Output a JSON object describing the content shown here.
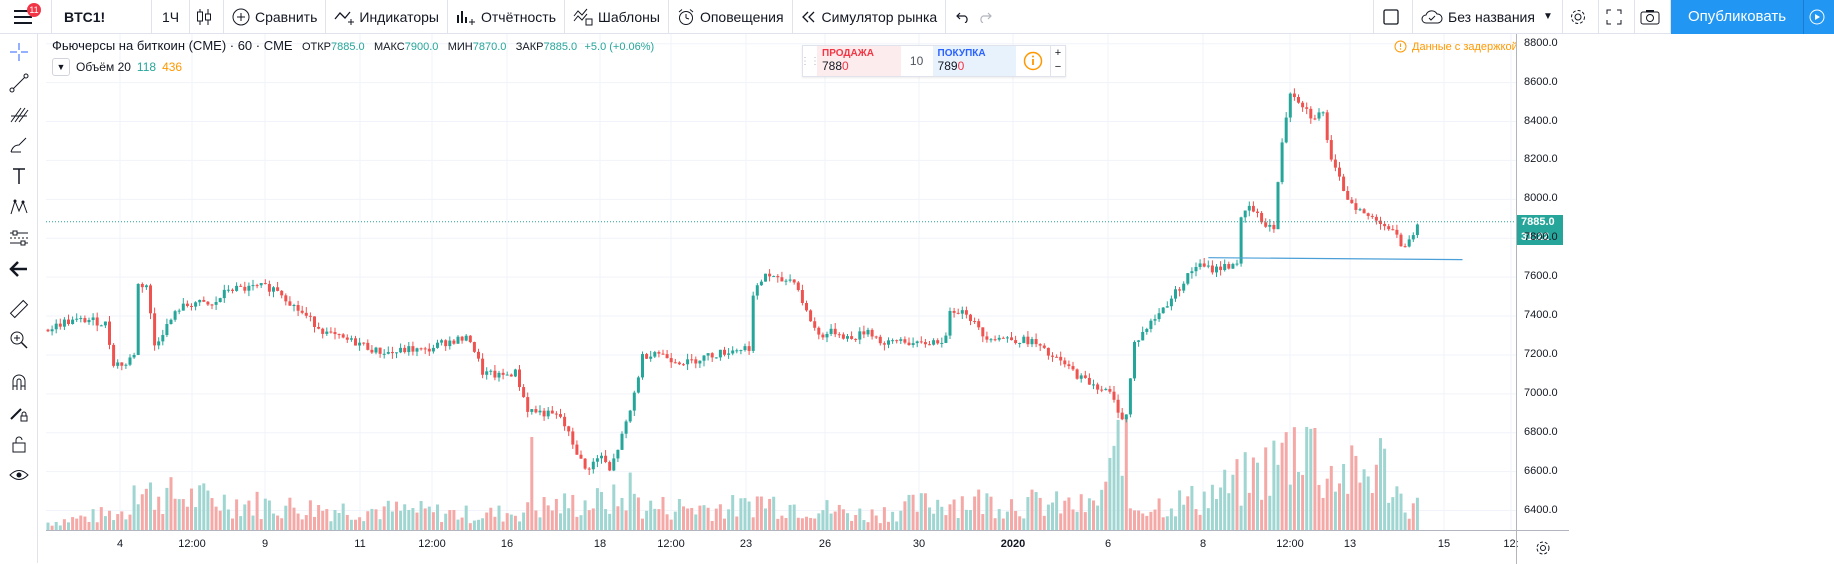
{
  "toolbar": {
    "notification_count": "11",
    "symbol": "BTC1!",
    "interval": "1Ч",
    "compare": "Сравнить",
    "indicators": "Индикаторы",
    "financials": "Отчётность",
    "templates": "Шаблоны",
    "alerts": "Оповещения",
    "replay": "Симулятор рынка",
    "layout_name": "Без названия",
    "publish": "Опубликовать"
  },
  "legend": {
    "title": "Фьючерсы на биткоин (CME) · 60 · CME",
    "open_label": "ОТКР",
    "open": "7885.0",
    "high_label": "МАКС",
    "high": "7900.0",
    "low_label": "МИН",
    "low": "7870.0",
    "close_label": "ЗАКР",
    "close": "7885.0",
    "change": "+5.0 (+0.06%)",
    "volume_label": "Объём 20",
    "volume_value_1": "118",
    "volume_value_2": "436"
  },
  "trade_panel": {
    "sell_label": "ПРОДАЖА",
    "sell_price_main": "788",
    "sell_price_tail": "0",
    "quantity": "10",
    "buy_label": "ПОКУПКА",
    "buy_price_main": "789",
    "buy_price_tail": "0",
    "plus": "+",
    "minus": "−"
  },
  "delayed_notice": "Данные с задержкой",
  "price_axis": {
    "labels": [
      "8800.0",
      "8600.0",
      "8400.0",
      "8200.0",
      "8000.0",
      "7800.0",
      "7600.0",
      "7400.0",
      "7200.0",
      "7000.0",
      "6800.0",
      "6600.0",
      "6400.0"
    ],
    "last_price": "7885.0",
    "countdown": "31:22"
  },
  "time_axis": {
    "labels": [
      {
        "text": "4",
        "bold": false
      },
      {
        "text": "12:00",
        "bold": false
      },
      {
        "text": "9",
        "bold": false
      },
      {
        "text": "11",
        "bold": false
      },
      {
        "text": "12:00",
        "bold": false
      },
      {
        "text": "16",
        "bold": false
      },
      {
        "text": "18",
        "bold": false
      },
      {
        "text": "12:00",
        "bold": false
      },
      {
        "text": "23",
        "bold": false
      },
      {
        "text": "26",
        "bold": false
      },
      {
        "text": "30",
        "bold": false
      },
      {
        "text": "2020",
        "bold": true
      },
      {
        "text": "6",
        "bold": false
      },
      {
        "text": "8",
        "bold": false
      },
      {
        "text": "12:00",
        "bold": false
      },
      {
        "text": "13",
        "bold": false
      },
      {
        "text": "15",
        "bold": false
      },
      {
        "text": "12:",
        "bold": false
      }
    ]
  },
  "colors": {
    "up": "#26a69a",
    "down": "#ef5350",
    "accent": "#2196f3",
    "trendline": "#4a9fd8",
    "grid": "#f0f3fa"
  },
  "chart_data": {
    "type": "candlestick",
    "symbol": "BTC1!",
    "interval": "60",
    "ylim": [
      6300,
      8850
    ],
    "price_path": [
      [
        0,
        7330
      ],
      [
        4,
        7370
      ],
      [
        10,
        7380
      ],
      [
        14,
        7360
      ],
      [
        16,
        7160
      ],
      [
        19,
        7150
      ],
      [
        21,
        7210
      ],
      [
        22,
        7560
      ],
      [
        24,
        7560
      ],
      [
        26,
        7250
      ],
      [
        28,
        7320
      ],
      [
        32,
        7440
      ],
      [
        36,
        7470
      ],
      [
        40,
        7450
      ],
      [
        44,
        7540
      ],
      [
        48,
        7540
      ],
      [
        52,
        7550
      ],
      [
        56,
        7540
      ],
      [
        60,
        7450
      ],
      [
        64,
        7380
      ],
      [
        68,
        7310
      ],
      [
        72,
        7280
      ],
      [
        76,
        7260
      ],
      [
        80,
        7220
      ],
      [
        84,
        7210
      ],
      [
        88,
        7230
      ],
      [
        92,
        7220
      ],
      [
        96,
        7260
      ],
      [
        100,
        7280
      ],
      [
        103,
        7280
      ],
      [
        106,
        7110
      ],
      [
        110,
        7090
      ],
      [
        114,
        7110
      ],
      [
        117,
        6920
      ],
      [
        121,
        6900
      ],
      [
        125,
        6880
      ],
      [
        127,
        6790
      ],
      [
        131,
        6610
      ],
      [
        135,
        6680
      ],
      [
        137,
        6600
      ],
      [
        140,
        6780
      ],
      [
        142,
        6910
      ],
      [
        145,
        7190
      ],
      [
        148,
        7220
      ],
      [
        152,
        7180
      ],
      [
        156,
        7160
      ],
      [
        160,
        7190
      ],
      [
        164,
        7210
      ],
      [
        168,
        7230
      ],
      [
        171,
        7240
      ],
      [
        172,
        7500
      ],
      [
        175,
        7620
      ],
      [
        178,
        7580
      ],
      [
        182,
        7590
      ],
      [
        185,
        7420
      ],
      [
        188,
        7300
      ],
      [
        192,
        7320
      ],
      [
        196,
        7280
      ],
      [
        200,
        7330
      ],
      [
        204,
        7250
      ],
      [
        208,
        7280
      ],
      [
        212,
        7250
      ],
      [
        216,
        7270
      ],
      [
        219,
        7280
      ],
      [
        220,
        7440
      ],
      [
        224,
        7420
      ],
      [
        228,
        7300
      ],
      [
        232,
        7290
      ],
      [
        236,
        7280
      ],
      [
        240,
        7270
      ],
      [
        244,
        7200
      ],
      [
        248,
        7150
      ],
      [
        252,
        7080
      ],
      [
        256,
        7040
      ],
      [
        259,
        7000
      ],
      [
        262,
        6880
      ],
      [
        263,
        6890
      ],
      [
        265,
        7260
      ],
      [
        268,
        7340
      ],
      [
        272,
        7440
      ],
      [
        276,
        7550
      ],
      [
        280,
        7660
      ],
      [
        284,
        7640
      ],
      [
        288,
        7660
      ],
      [
        290,
        7680
      ],
      [
        291,
        7890
      ],
      [
        293,
        7960
      ],
      [
        296,
        7890
      ],
      [
        299,
        7850
      ],
      [
        301,
        8300
      ],
      [
        303,
        8560
      ],
      [
        306,
        8490
      ],
      [
        308,
        8430
      ],
      [
        311,
        8440
      ],
      [
        313,
        8190
      ],
      [
        317,
        8010
      ],
      [
        321,
        7920
      ],
      [
        325,
        7890
      ],
      [
        328,
        7830
      ],
      [
        330,
        7770
      ],
      [
        332,
        7780
      ],
      [
        334,
        7890
      ]
    ],
    "volume_path": [
      [
        0,
        10
      ],
      [
        20,
        25
      ],
      [
        21,
        120
      ],
      [
        22,
        50
      ],
      [
        40,
        40
      ],
      [
        60,
        30
      ],
      [
        90,
        25
      ],
      [
        105,
        20
      ],
      [
        117,
        25
      ],
      [
        118,
        140
      ],
      [
        119,
        30
      ],
      [
        140,
        40
      ],
      [
        142,
        55
      ],
      [
        145,
        30
      ],
      [
        170,
        30
      ],
      [
        172,
        40
      ],
      [
        200,
        20
      ],
      [
        220,
        40
      ],
      [
        240,
        35
      ],
      [
        255,
        30
      ],
      [
        258,
        60
      ],
      [
        260,
        80
      ],
      [
        262,
        160
      ],
      [
        264,
        30
      ],
      [
        280,
        40
      ],
      [
        290,
        60
      ],
      [
        300,
        90
      ],
      [
        305,
        120
      ],
      [
        307,
        150
      ],
      [
        310,
        80
      ],
      [
        320,
        70
      ],
      [
        325,
        90
      ],
      [
        330,
        40
      ],
      [
        334,
        30
      ]
    ],
    "trendline": {
      "from": [
        283,
        7700
      ],
      "to": [
        345,
        7690
      ]
    },
    "last_price": 7885.0
  }
}
